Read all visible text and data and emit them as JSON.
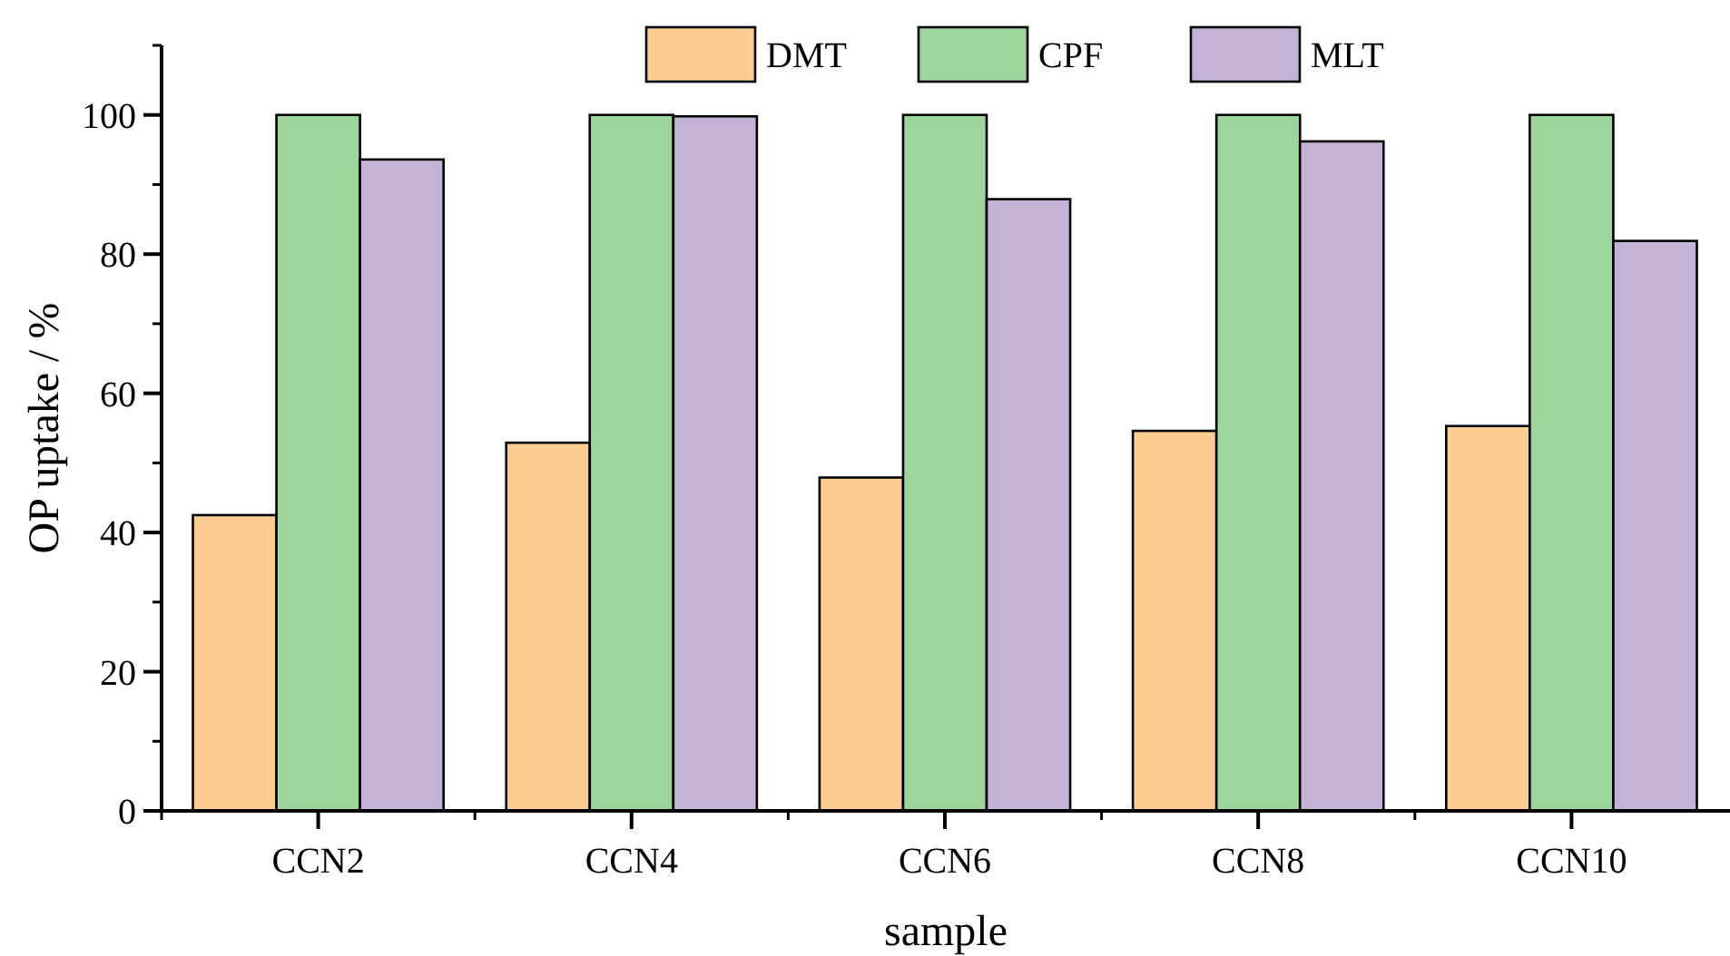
{
  "chart_data": {
    "type": "bar",
    "xlabel": "sample",
    "ylabel": "OP uptake / %",
    "categories": [
      "CCN2",
      "CCN4",
      "CCN6",
      "CCN8",
      "CCN10"
    ],
    "series": [
      {
        "name": "DMT",
        "color": "#fdcc92",
        "values": [
          42.5,
          52.9,
          47.9,
          54.6,
          55.3
        ]
      },
      {
        "name": "CPF",
        "color": "#9dd59b",
        "values": [
          100,
          100,
          100,
          100,
          100
        ]
      },
      {
        "name": "MLT",
        "color": "#c5b3d7",
        "values": [
          93.6,
          99.8,
          87.9,
          96.2,
          81.9
        ]
      }
    ],
    "ylim": [
      0,
      110
    ],
    "yticks": [
      0,
      20,
      40,
      60,
      80,
      100
    ],
    "grid": false,
    "legend": "top"
  }
}
